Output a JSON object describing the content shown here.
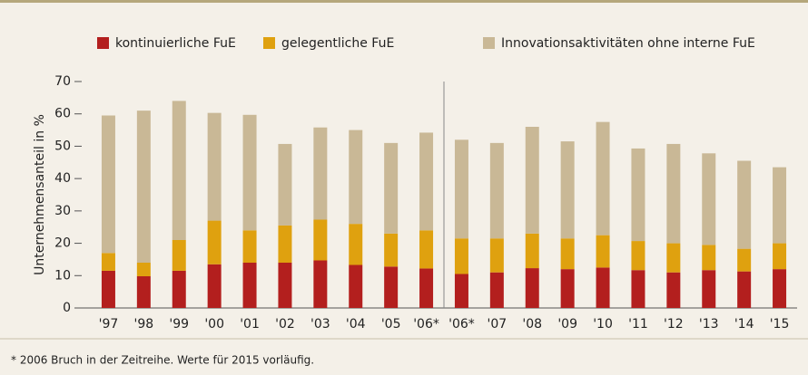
{
  "chart_data": {
    "type": "stacked_bar",
    "y_label": "Unternehmensanteil in %",
    "footnote": "* 2006 Bruch in der Zeitreihe. Werte für 2015 vorläufig.",
    "categories": [
      "'97",
      "'98",
      "'99",
      "'00",
      "'01",
      "'02",
      "'03",
      "'04",
      "'05",
      "'06*",
      "'06*",
      "'07",
      "'08",
      "'09",
      "'10",
      "'11",
      "'12",
      "'13",
      "'14",
      "'15"
    ],
    "series": [
      {
        "name": "kontinuierliche FuE",
        "color": "#b31f1e",
        "values": [
          11.5,
          9.8,
          11.5,
          13.5,
          14,
          14,
          14.7,
          13.3,
          12.8,
          12.2,
          10.5,
          11,
          12.3,
          12,
          12.5,
          11.7,
          11,
          11.7,
          11.3,
          12
        ]
      },
      {
        "name": "gelegentliche FuE",
        "color": "#dfa10f",
        "values": [
          5.5,
          4.2,
          9.5,
          13.5,
          10,
          11.5,
          12.6,
          12.7,
          10.2,
          11.8,
          11,
          10.5,
          10.7,
          9.5,
          10,
          9,
          9,
          7.8,
          7,
          8
        ]
      },
      {
        "name": "Innovationsaktivitäten ohne interne FuE",
        "color": "#c9b896",
        "values": [
          42.5,
          47,
          43,
          33.3,
          35.7,
          25.2,
          28.5,
          29,
          28,
          30.2,
          30.5,
          29.5,
          33,
          30,
          35,
          28.6,
          30.7,
          28.3,
          27.2,
          23.5
        ]
      }
    ],
    "ylim": [
      0,
      70
    ],
    "yticks": [
      0,
      10,
      20,
      30,
      40,
      50,
      60,
      70
    ]
  }
}
